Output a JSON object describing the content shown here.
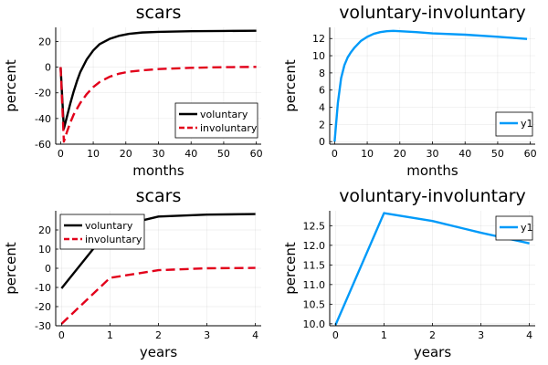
{
  "chart_data": [
    {
      "type": "line",
      "title": "scars",
      "xlabel": "months",
      "ylabel": "percent",
      "xlim": [
        -1.5,
        61.5
      ],
      "ylim": [
        -60,
        31
      ],
      "xticks": [
        0,
        10,
        20,
        30,
        40,
        50,
        60
      ],
      "yticks": [
        -60,
        -40,
        -20,
        0,
        20
      ],
      "grid": true,
      "legend": "bottom-right",
      "series": [
        {
          "name": "voluntary",
          "color": "#000000",
          "dash": "solid",
          "x": [
            0,
            1,
            2,
            3,
            4,
            5,
            6,
            8,
            10,
            12,
            15,
            18,
            21,
            25,
            30,
            40,
            50,
            60
          ],
          "y": [
            0,
            -48,
            -38,
            -28,
            -19,
            -11,
            -4,
            6,
            13,
            18,
            22,
            24.5,
            26,
            27,
            27.5,
            28,
            28.2,
            28.4
          ]
        },
        {
          "name": "involuntary",
          "color": "#e2001a",
          "dash": "dashed",
          "x": [
            0,
            1,
            2,
            3,
            4,
            6,
            8,
            10,
            12,
            15,
            18,
            21,
            25,
            30,
            40,
            50,
            60
          ],
          "y": [
            0,
            -58,
            -50,
            -43,
            -37,
            -28,
            -21,
            -15.5,
            -11.5,
            -7.5,
            -5,
            -3.5,
            -2.5,
            -1.5,
            -0.5,
            0,
            0.2
          ]
        }
      ]
    },
    {
      "type": "line",
      "title": "voluntary-involuntary",
      "xlabel": "months",
      "ylabel": "percent",
      "xlim": [
        -1.5,
        61.5
      ],
      "ylim": [
        -0.3,
        13.3
      ],
      "xticks": [
        0,
        10,
        20,
        30,
        40,
        50,
        60
      ],
      "yticks": [
        0,
        2,
        4,
        6,
        8,
        10,
        12
      ],
      "grid": true,
      "legend": "bottom-right",
      "series": [
        {
          "name": "y1",
          "color": "#009af9",
          "dash": "solid",
          "x": [
            0,
            1,
            2,
            3,
            4,
            5,
            6,
            8,
            10,
            12,
            14,
            16,
            18,
            20,
            25,
            30,
            40,
            50,
            59
          ],
          "y": [
            0,
            4.5,
            7.4,
            8.9,
            9.8,
            10.4,
            10.9,
            11.7,
            12.2,
            12.55,
            12.75,
            12.85,
            12.9,
            12.85,
            12.75,
            12.6,
            12.45,
            12.2,
            11.95
          ]
        }
      ]
    },
    {
      "type": "line",
      "title": "scars",
      "xlabel": "years",
      "ylabel": "percent",
      "xlim": [
        -0.12,
        4.12
      ],
      "ylim": [
        -30,
        30
      ],
      "xticks": [
        0,
        1,
        2,
        3,
        4
      ],
      "yticks": [
        -30,
        -20,
        -10,
        0,
        10,
        20
      ],
      "grid": true,
      "legend": "top-left",
      "series": [
        {
          "name": "voluntary",
          "color": "#000000",
          "dash": "solid",
          "x": [
            0,
            1,
            2,
            3,
            4
          ],
          "y": [
            -10.5,
            21,
            27,
            28,
            28.3
          ]
        },
        {
          "name": "involuntary",
          "color": "#e2001a",
          "dash": "dashed",
          "x": [
            0,
            1,
            2,
            3,
            4
          ],
          "y": [
            -29,
            -5,
            -1,
            0,
            0.2
          ]
        }
      ]
    },
    {
      "type": "line",
      "title": "voluntary-involuntary",
      "xlabel": "years",
      "ylabel": "percent",
      "xlim": [
        -0.12,
        4.12
      ],
      "ylim": [
        9.95,
        12.88
      ],
      "xticks": [
        0,
        1,
        2,
        3,
        4
      ],
      "yticks": [
        10.0,
        10.5,
        11.0,
        11.5,
        12.0,
        12.5
      ],
      "ytick_format": "fixed1",
      "grid": true,
      "legend": "top-right",
      "series": [
        {
          "name": "y1",
          "color": "#009af9",
          "dash": "solid",
          "x": [
            0,
            1,
            2,
            3,
            4
          ],
          "y": [
            9.97,
            12.82,
            12.62,
            12.32,
            12.05
          ]
        }
      ]
    }
  ]
}
